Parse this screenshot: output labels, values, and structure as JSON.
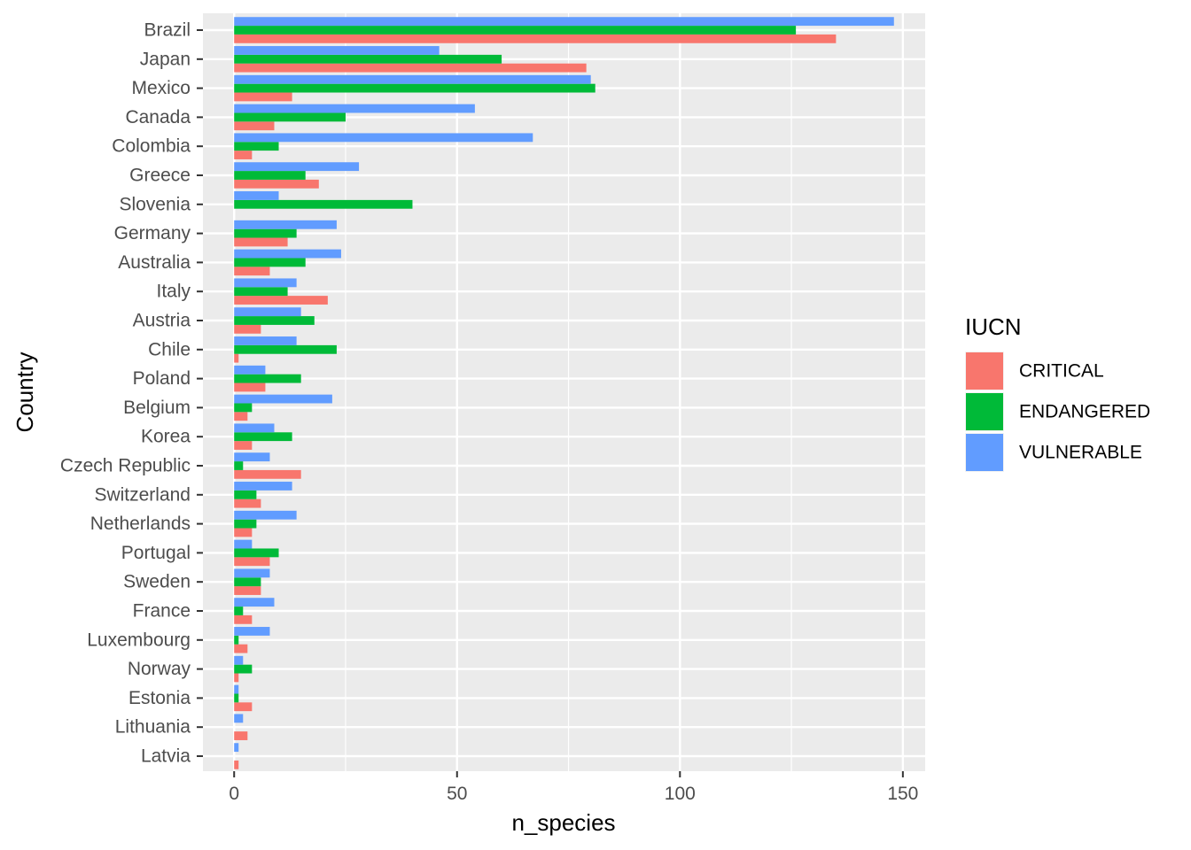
{
  "chart_data": {
    "type": "bar",
    "orientation": "horizontal",
    "position": "dodge",
    "xlabel": "n_species",
    "ylabel": "Country",
    "xlim": [
      -7,
      155
    ],
    "xticks": [
      0,
      50,
      100,
      150
    ],
    "grid": true,
    "legend": {
      "title": "IUCN",
      "placement": "right"
    },
    "categories": [
      "Brazil",
      "Japan",
      "Mexico",
      "Canada",
      "Colombia",
      "Greece",
      "Slovenia",
      "Germany",
      "Australia",
      "Italy",
      "Austria",
      "Chile",
      "Poland",
      "Belgium",
      "Korea",
      "Czech Republic",
      "Switzerland",
      "Netherlands",
      "Portugal",
      "Sweden",
      "France",
      "Luxembourg",
      "Norway",
      "Estonia",
      "Lithuania",
      "Latvia"
    ],
    "series": [
      {
        "name": "CRITICAL",
        "color": "#F8766D",
        "values": [
          135,
          79,
          13,
          9,
          4,
          19,
          0,
          12,
          8,
          21,
          6,
          1,
          7,
          3,
          4,
          15,
          6,
          4,
          8,
          6,
          4,
          3,
          1,
          4,
          3,
          1
        ]
      },
      {
        "name": "ENDANGERED",
        "color": "#00BA38",
        "values": [
          126,
          60,
          81,
          25,
          10,
          16,
          40,
          14,
          16,
          12,
          18,
          23,
          15,
          4,
          13,
          2,
          5,
          5,
          10,
          6,
          2,
          1,
          4,
          1,
          0,
          0
        ]
      },
      {
        "name": "VULNERABLE",
        "color": "#619CFF",
        "values": [
          148,
          46,
          80,
          54,
          67,
          28,
          10,
          23,
          24,
          14,
          15,
          14,
          7,
          22,
          9,
          8,
          13,
          14,
          4,
          8,
          9,
          8,
          2,
          1,
          2,
          1
        ]
      }
    ]
  }
}
